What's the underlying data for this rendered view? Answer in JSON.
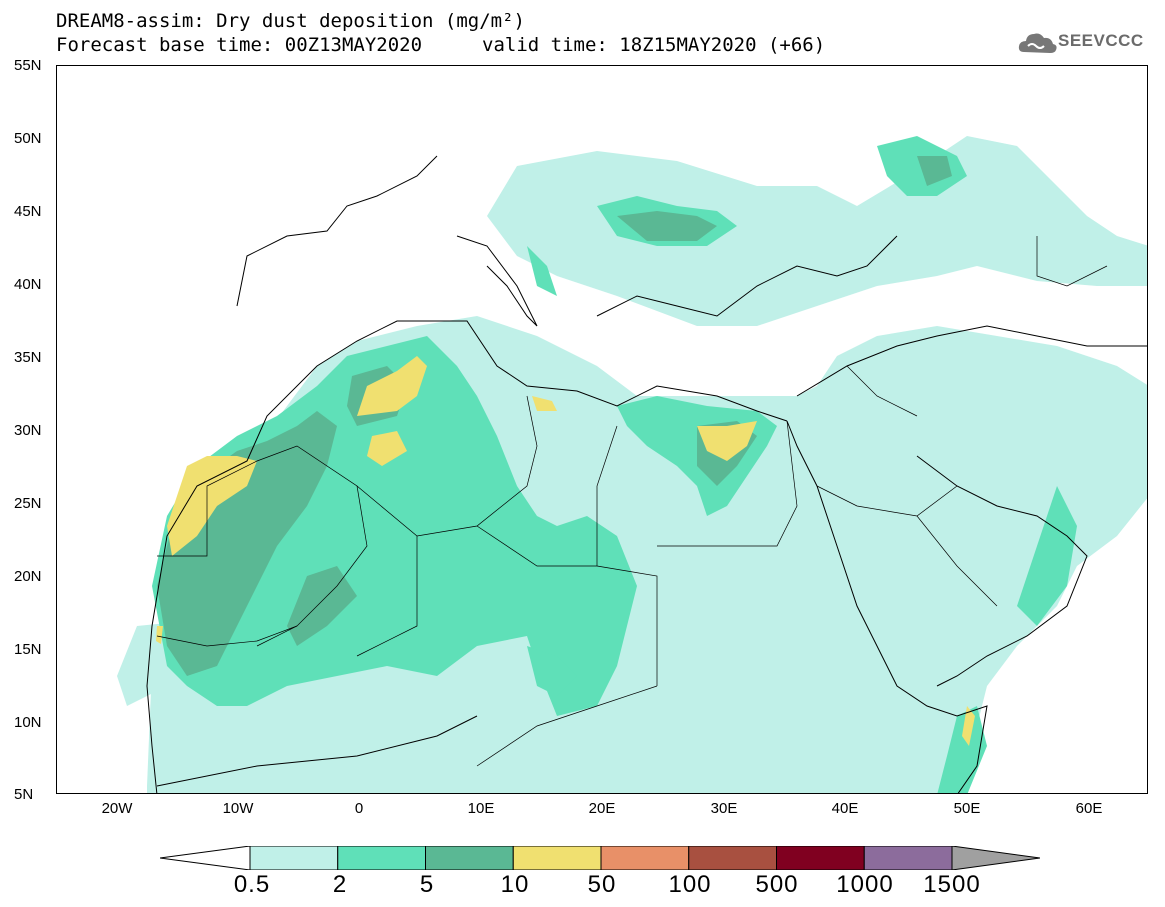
{
  "title": {
    "line1": "DREAM8-assim: Dry dust deposition (mg/m²)",
    "line2": "Forecast base time: 00Z13MAY2020",
    "line2b": "valid time: 18Z15MAY2020 (+66)"
  },
  "logo": {
    "text": "SEEVCCC",
    "icon": "cloud-logo-icon"
  },
  "axes": {
    "lat_labels": [
      "55N",
      "50N",
      "45N",
      "40N",
      "35N",
      "30N",
      "25N",
      "20N",
      "15N",
      "10N",
      "5N"
    ],
    "lon_labels": [
      "20W",
      "10W",
      "0",
      "10E",
      "20E",
      "30E",
      "40E",
      "50E",
      "60E"
    ]
  },
  "colorbar": {
    "labels": [
      "0.5",
      "2",
      "5",
      "10",
      "50",
      "100",
      "500",
      "1000",
      "1500"
    ],
    "colors": [
      "#c0f0e8",
      "#5fe0b8",
      "#5ab894",
      "#f0e070",
      "#e89068",
      "#a85040",
      "#800020",
      "#8c6c9c"
    ],
    "under_color": "#ffffff",
    "over_color": "#a0a0a0"
  }
}
